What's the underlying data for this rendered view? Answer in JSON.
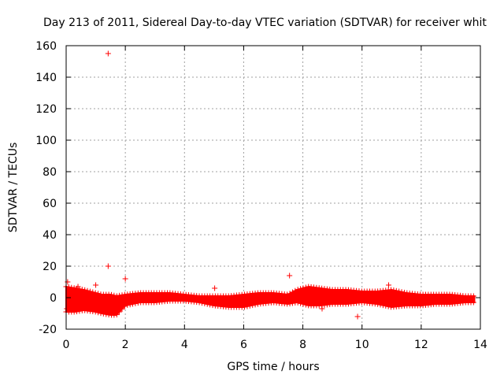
{
  "chart_data": {
    "type": "scatter",
    "title": "Day 213 of 2011, Sidereal Day-to-day VTEC variation (SDTVAR) for receiver whit",
    "xlabel": "GPS time / hours",
    "ylabel": "SDTVAR / TECUs",
    "xlim": [
      0,
      14
    ],
    "ylim": [
      -20,
      160
    ],
    "x_ticks": [
      0,
      2,
      4,
      6,
      8,
      10,
      12,
      14
    ],
    "y_ticks": [
      -20,
      0,
      20,
      40,
      60,
      80,
      100,
      120,
      140,
      160
    ],
    "grid": true,
    "marker": "+",
    "series_color": "#ff0000",
    "band": {
      "x": [
        0.0,
        0.3,
        0.6,
        1.0,
        1.2,
        1.5,
        1.7,
        2.0,
        2.5,
        3.0,
        3.5,
        4.0,
        4.5,
        5.0,
        5.5,
        6.0,
        6.5,
        7.0,
        7.5,
        7.8,
        8.2,
        8.6,
        9.0,
        9.5,
        10.0,
        10.5,
        11.0,
        11.5,
        12.0,
        12.5,
        13.0,
        13.5,
        13.8
      ],
      "upper": [
        7,
        6,
        5,
        3,
        2,
        2,
        1,
        2,
        3,
        3,
        3,
        2,
        1,
        1,
        1,
        2,
        3,
        3,
        2,
        5,
        7,
        6,
        5,
        5,
        4,
        4,
        5,
        3,
        2,
        2,
        2,
        1,
        1
      ],
      "lower": [
        -9,
        -9,
        -8,
        -9,
        -10,
        -11,
        -11,
        -5,
        -3,
        -3,
        -2,
        -2,
        -3,
        -5,
        -6,
        -6,
        -4,
        -3,
        -4,
        -3,
        -5,
        -5,
        -4,
        -4,
        -3,
        -4,
        -6,
        -5,
        -5,
        -4,
        -4,
        -3,
        -3
      ]
    },
    "outliers": [
      {
        "x": 1.42,
        "y": 155
      },
      {
        "x": 1.42,
        "y": 20
      },
      {
        "x": 2.0,
        "y": 12
      },
      {
        "x": 7.55,
        "y": 14
      },
      {
        "x": 9.85,
        "y": -12
      },
      {
        "x": 10.9,
        "y": 8
      },
      {
        "x": 5.02,
        "y": 6
      },
      {
        "x": 1.0,
        "y": 8
      },
      {
        "x": 0.4,
        "y": 7
      },
      {
        "x": 8.65,
        "y": -7
      },
      {
        "x": 0.05,
        "y": 10
      },
      {
        "x": 0.02,
        "y": -7
      }
    ]
  }
}
